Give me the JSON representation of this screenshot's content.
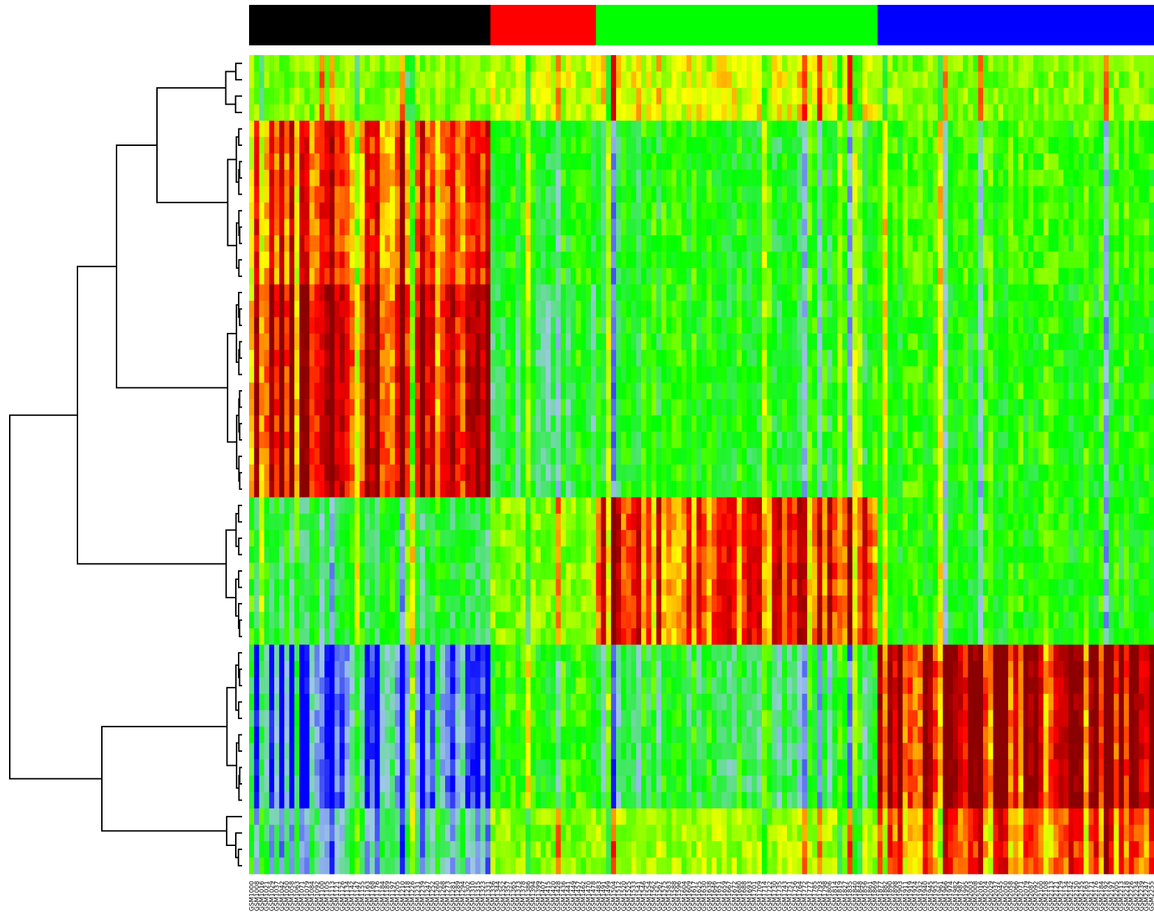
{
  "chart_data": {
    "type": "heatmap",
    "title": "",
    "xlabel": "",
    "ylabel": "",
    "legend": "none",
    "grid": false,
    "row_count": 50,
    "column_count": 180,
    "column_groups": [
      {
        "color": "#000000",
        "start": 0,
        "count": 48
      },
      {
        "color": "#ff0000",
        "start": 48,
        "count": 21
      },
      {
        "color": "#00ff00",
        "start": 69,
        "count": 56
      },
      {
        "color": "#0000ff",
        "start": 125,
        "count": 55
      }
    ],
    "row_clusters": [
      {
        "start": 0,
        "count": 4
      },
      {
        "start": 4,
        "count": 10
      },
      {
        "start": 14,
        "count": 13
      },
      {
        "start": 27,
        "count": 9
      },
      {
        "start": 36,
        "count": 10
      },
      {
        "start": 46,
        "count": 4
      }
    ],
    "color_scale": [
      "#0000ff",
      "#a0c8e8",
      "#00ff00",
      "#ffff00",
      "#ff0000",
      "#8b0000"
    ],
    "value_range": [
      -3,
      3
    ],
    "column_label_prefix": "GSM"
  }
}
